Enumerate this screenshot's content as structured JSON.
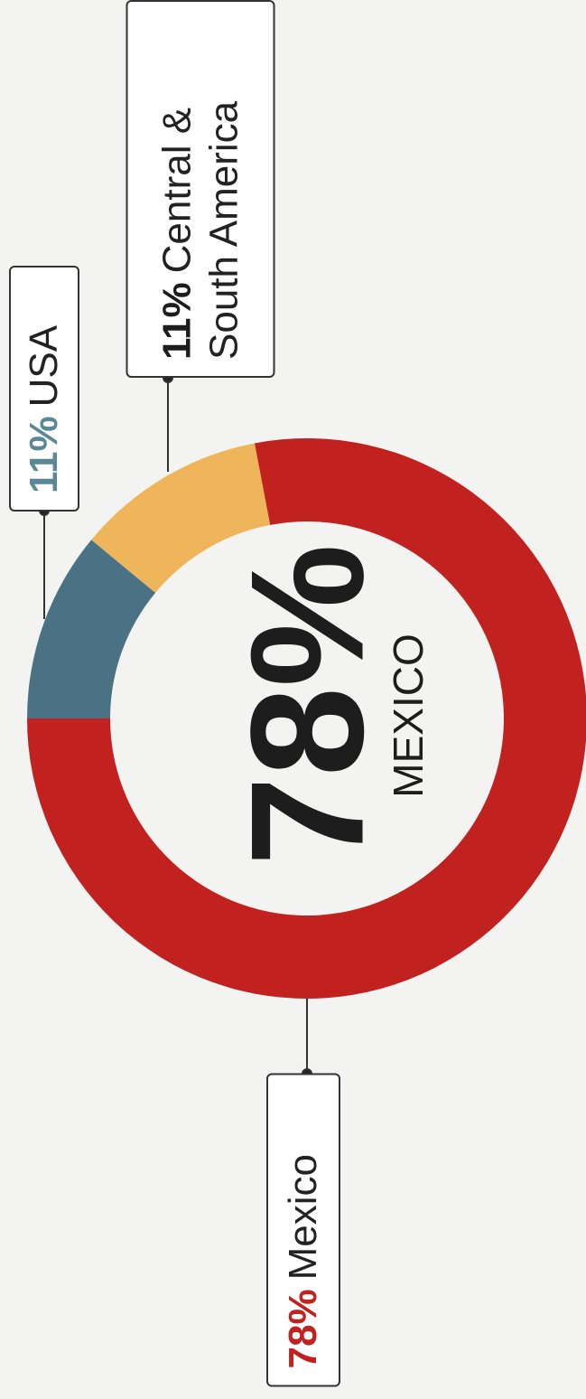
{
  "chart_data": {
    "type": "pie",
    "donut": true,
    "categories": [
      "USA",
      "Central & South America",
      "Mexico"
    ],
    "values": [
      11,
      11,
      78
    ],
    "value_labels": [
      "11%",
      "11%",
      "78%"
    ],
    "colors": [
      "#4a7184",
      "#efb55b",
      "#c1221f"
    ],
    "label_colors": [
      "#5b8896",
      "#1d1d1d",
      "#c1221f"
    ],
    "center_label": "78%",
    "center_sublabel": "MEXICO"
  }
}
